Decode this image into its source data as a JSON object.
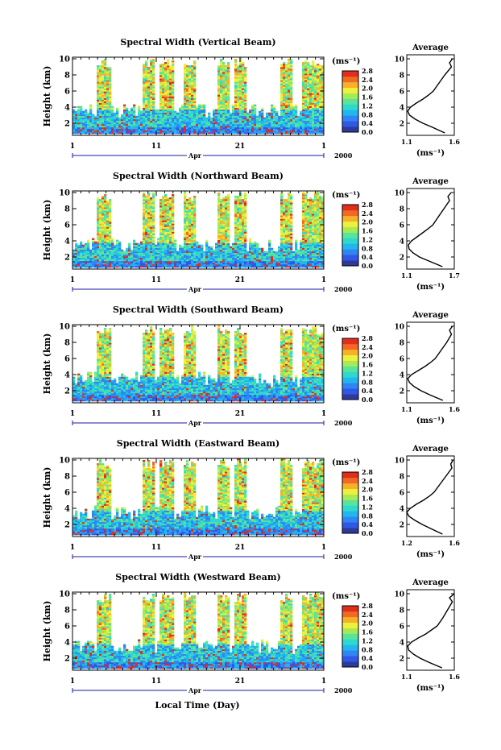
{
  "figure": {
    "xlabel": "Local Time (Day)",
    "colorbar_unit": "(ms⁻¹)",
    "average_title": "Average",
    "average_unit": "(ms⁻¹)"
  },
  "chart_data": [
    {
      "type": "heatmap",
      "title": "Spectral Width (Vertical Beam)",
      "ylabel": "Height (km)",
      "xlabel": "",
      "x_ticks": [
        "1",
        "11",
        "21",
        "1"
      ],
      "x_month": "Apr",
      "x_year": "2000",
      "ylim": [
        0.5,
        10.2
      ],
      "y_ticks": [
        "2",
        "4",
        "6",
        "8",
        "10"
      ],
      "colorbar_range": [
        0.0,
        2.8
      ],
      "colorbar_ticks": [
        "0.0",
        "0.4",
        "0.8",
        "1.2",
        "1.6",
        "2.0",
        "2.4",
        "2.8"
      ],
      "colorscale": [
        "#2d3a9b",
        "#3057e6",
        "#2f86f2",
        "#22b6ee",
        "#2fd8cf",
        "#58e49a",
        "#a6ea57",
        "#eef03a",
        "#f7b02a",
        "#f06a22",
        "#e22c1c"
      ],
      "average": {
        "title": "Average",
        "xlabel": "(ms⁻¹)",
        "xlim": [
          1.1,
          1.6
        ],
        "x_ticks": [
          "1.1",
          "1.6"
        ],
        "y_ticks": [
          "2",
          "4",
          "6",
          "8",
          "10"
        ],
        "height_km": [
          0.8,
          1.5,
          2.0,
          2.5,
          3.0,
          3.5,
          4.0,
          4.5,
          5.0,
          5.5,
          6.0,
          7.0,
          8.0,
          9.0,
          9.5,
          10.0
        ],
        "values": [
          1.5,
          1.37,
          1.27,
          1.19,
          1.13,
          1.11,
          1.14,
          1.2,
          1.27,
          1.33,
          1.38,
          1.44,
          1.5,
          1.57,
          1.55,
          1.58
        ]
      }
    },
    {
      "type": "heatmap",
      "title": "Spectral Width (Northward Beam)",
      "ylabel": "Height (km)",
      "xlabel": "",
      "x_ticks": [
        "1",
        "11",
        "21",
        "1"
      ],
      "x_month": "Apr",
      "x_year": "2000",
      "ylim": [
        0.5,
        10.2
      ],
      "y_ticks": [
        "2",
        "4",
        "6",
        "8",
        "10"
      ],
      "colorbar_range": [
        0.0,
        2.8
      ],
      "colorbar_ticks": [
        "0.0",
        "0.4",
        "0.8",
        "1.2",
        "1.6",
        "2.0",
        "2.4",
        "2.8"
      ],
      "colorscale": [
        "#2d3a9b",
        "#3057e6",
        "#2f86f2",
        "#22b6ee",
        "#2fd8cf",
        "#58e49a",
        "#a6ea57",
        "#eef03a",
        "#f7b02a",
        "#f06a22",
        "#e22c1c"
      ],
      "average": {
        "title": "Average",
        "xlabel": "(ms⁻¹)",
        "xlim": [
          1.1,
          1.7
        ],
        "x_ticks": [
          "1.1",
          "1.7"
        ],
        "y_ticks": [
          "2",
          "4",
          "6",
          "8",
          "10"
        ],
        "height_km": [
          0.8,
          1.5,
          2.0,
          2.5,
          3.0,
          3.5,
          4.0,
          4.5,
          5.0,
          5.5,
          6.0,
          7.0,
          8.0,
          9.0,
          9.5,
          10.0
        ],
        "values": [
          1.55,
          1.38,
          1.26,
          1.18,
          1.13,
          1.12,
          1.16,
          1.23,
          1.3,
          1.37,
          1.43,
          1.5,
          1.57,
          1.64,
          1.62,
          1.66
        ]
      }
    },
    {
      "type": "heatmap",
      "title": "Spectral Width (Southward Beam)",
      "ylabel": "Height (km)",
      "xlabel": "",
      "x_ticks": [
        "1",
        "11",
        "21",
        "1"
      ],
      "x_month": "Apr",
      "x_year": "2000",
      "ylim": [
        0.5,
        10.2
      ],
      "y_ticks": [
        "2",
        "4",
        "6",
        "8",
        "10"
      ],
      "colorbar_range": [
        0.0,
        2.8
      ],
      "colorbar_ticks": [
        "0.0",
        "0.4",
        "0.8",
        "1.2",
        "1.6",
        "2.0",
        "2.4",
        "2.8"
      ],
      "colorscale": [
        "#2d3a9b",
        "#3057e6",
        "#2f86f2",
        "#22b6ee",
        "#2fd8cf",
        "#58e49a",
        "#a6ea57",
        "#eef03a",
        "#f7b02a",
        "#f06a22",
        "#e22c1c"
      ],
      "average": {
        "title": "Average",
        "xlabel": "(ms⁻¹)",
        "xlim": [
          1.1,
          1.6
        ],
        "x_ticks": [
          "1.1",
          "1.6"
        ],
        "y_ticks": [
          "2",
          "4",
          "6",
          "8",
          "10"
        ],
        "height_km": [
          0.8,
          1.5,
          2.0,
          2.5,
          3.0,
          3.5,
          4.0,
          4.5,
          5.0,
          5.5,
          6.0,
          7.0,
          8.0,
          9.0,
          9.5,
          10.0
        ],
        "values": [
          1.48,
          1.34,
          1.25,
          1.18,
          1.13,
          1.11,
          1.15,
          1.22,
          1.29,
          1.35,
          1.4,
          1.46,
          1.52,
          1.57,
          1.55,
          1.58
        ]
      }
    },
    {
      "type": "heatmap",
      "title": "Spectral Width (Eastward Beam)",
      "ylabel": "Height (km)",
      "xlabel": "",
      "x_ticks": [
        "1",
        "11",
        "21",
        "1"
      ],
      "x_month": "Apr",
      "x_year": "2000",
      "ylim": [
        0.5,
        10.2
      ],
      "y_ticks": [
        "2",
        "4",
        "6",
        "8",
        "10"
      ],
      "colorbar_range": [
        0.0,
        2.8
      ],
      "colorbar_ticks": [
        "0.0",
        "0.4",
        "0.8",
        "1.2",
        "1.6",
        "2.0",
        "2.4",
        "2.8"
      ],
      "colorscale": [
        "#2d3a9b",
        "#3057e6",
        "#2f86f2",
        "#22b6ee",
        "#2fd8cf",
        "#58e49a",
        "#a6ea57",
        "#eef03a",
        "#f7b02a",
        "#f06a22",
        "#e22c1c"
      ],
      "average": {
        "title": "Average",
        "xlabel": "(ms⁻¹)",
        "xlim": [
          1.2,
          1.6
        ],
        "x_ticks": [
          "1.2",
          "1.6"
        ],
        "y_ticks": [
          "2",
          "4",
          "6",
          "8",
          "10"
        ],
        "height_km": [
          0.8,
          1.5,
          2.0,
          2.5,
          3.0,
          3.5,
          4.0,
          4.5,
          5.0,
          5.5,
          6.0,
          7.0,
          8.0,
          9.0,
          9.5,
          10.0
        ],
        "values": [
          1.5,
          1.4,
          1.33,
          1.27,
          1.22,
          1.2,
          1.23,
          1.28,
          1.34,
          1.39,
          1.43,
          1.48,
          1.53,
          1.58,
          1.57,
          1.59
        ]
      }
    },
    {
      "type": "heatmap",
      "title": "Spectral Width (Westward Beam)",
      "ylabel": "Height (km)",
      "xlabel": "Local Time (Day)",
      "x_ticks": [
        "1",
        "11",
        "21",
        "1"
      ],
      "x_month": "Apr",
      "x_year": "2000",
      "ylim": [
        0.5,
        10.2
      ],
      "y_ticks": [
        "2",
        "4",
        "6",
        "8",
        "10"
      ],
      "colorbar_range": [
        0.0,
        2.8
      ],
      "colorbar_ticks": [
        "0.0",
        "0.4",
        "0.8",
        "1.2",
        "1.6",
        "2.0",
        "2.4",
        "2.8"
      ],
      "colorscale": [
        "#2d3a9b",
        "#3057e6",
        "#2f86f2",
        "#22b6ee",
        "#2fd8cf",
        "#58e49a",
        "#a6ea57",
        "#eef03a",
        "#f7b02a",
        "#f06a22",
        "#e22c1c"
      ],
      "average": {
        "title": "Average",
        "xlabel": "(ms⁻¹)",
        "xlim": [
          1.1,
          1.6
        ],
        "x_ticks": [
          "1.1",
          "1.6"
        ],
        "y_ticks": [
          "2",
          "4",
          "6",
          "8",
          "10"
        ],
        "height_km": [
          0.8,
          1.5,
          2.0,
          2.5,
          3.0,
          3.5,
          4.0,
          4.5,
          5.0,
          5.5,
          6.0,
          7.0,
          8.0,
          9.0,
          9.5,
          10.0
        ],
        "values": [
          1.47,
          1.33,
          1.24,
          1.17,
          1.12,
          1.11,
          1.15,
          1.22,
          1.3,
          1.36,
          1.42,
          1.48,
          1.53,
          1.58,
          1.55,
          1.6
        ]
      }
    }
  ]
}
